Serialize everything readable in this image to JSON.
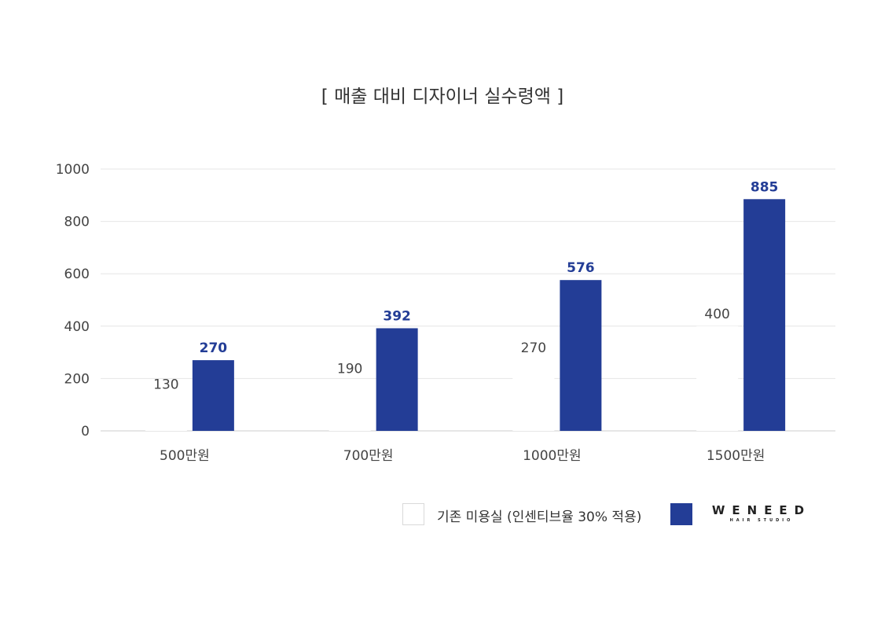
{
  "chart_data": {
    "type": "bar",
    "title": "[ 매출 대비 디자이너 실수령액 ]",
    "xlabel": "",
    "ylabel": "",
    "ylim": [
      0,
      1000
    ],
    "yticks": [
      "0",
      "200",
      "400",
      "600",
      "800",
      "1000"
    ],
    "categories": [
      "500만원",
      "700만원",
      "1000만원",
      "1500만원"
    ],
    "grid": true,
    "legend_position": "bottom-right",
    "series": [
      {
        "name": "기존 미용실 (인센티브율 30% 적용)",
        "values": [
          130,
          190,
          270,
          400
        ],
        "color": "#ffffff"
      },
      {
        "name": "WENEED",
        "values": [
          270,
          392,
          576,
          885
        ],
        "color": "#233d96"
      }
    ]
  },
  "legend": {
    "item1_label": "기존 미용실 (인센티브율 30% 적용)",
    "brand_main": "WENEED",
    "brand_sub": "HAIR STUDIO"
  },
  "colors": {
    "accent": "#233d96",
    "grid": "#e6e6e6",
    "text": "#333333"
  }
}
